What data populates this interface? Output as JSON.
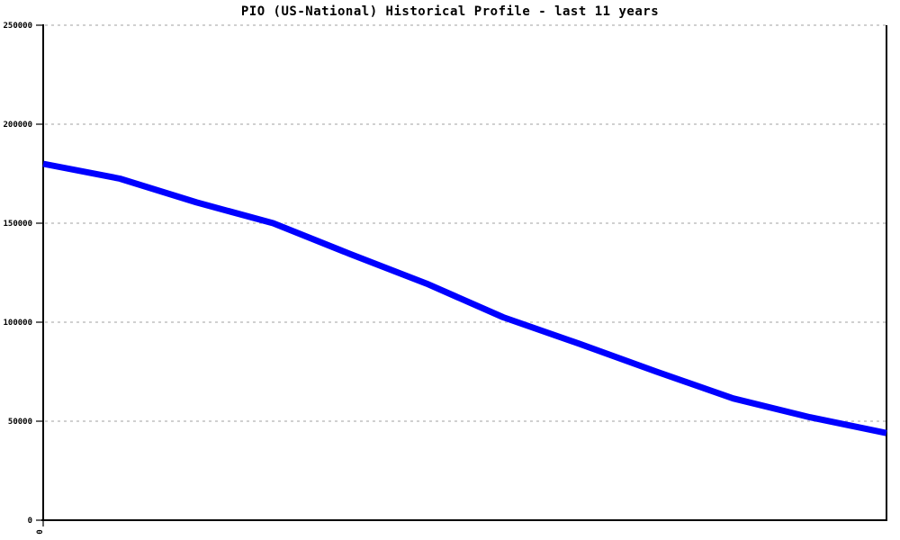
{
  "chart_data": {
    "type": "line",
    "title": "PIO (US-National) Historical Profile - last 11 years",
    "x": [
      0,
      1,
      2,
      3,
      4,
      5,
      6,
      7,
      8,
      9,
      10,
      11
    ],
    "series": [
      {
        "name": "PIO (US-National)",
        "values": [
          180000,
          172500,
          160500,
          150000,
          134500,
          119500,
          102500,
          89000,
          75000,
          61500,
          52000,
          44000
        ]
      }
    ],
    "xlabel": "",
    "ylabel": "",
    "ylim": [
      0,
      250000
    ],
    "yticks": [
      0,
      50000,
      100000,
      150000,
      200000,
      250000
    ],
    "ytick_labels": [
      "0",
      "50000",
      "100000",
      "150000",
      "200000",
      "250000"
    ],
    "x_tick_label_visible": "0",
    "grid": "horizontal dotted",
    "legend_position": "none",
    "line_color": "#0000ff",
    "axis_color": "#000000",
    "grid_color": "#c0c0c0",
    "background_color": "#ffffff"
  }
}
